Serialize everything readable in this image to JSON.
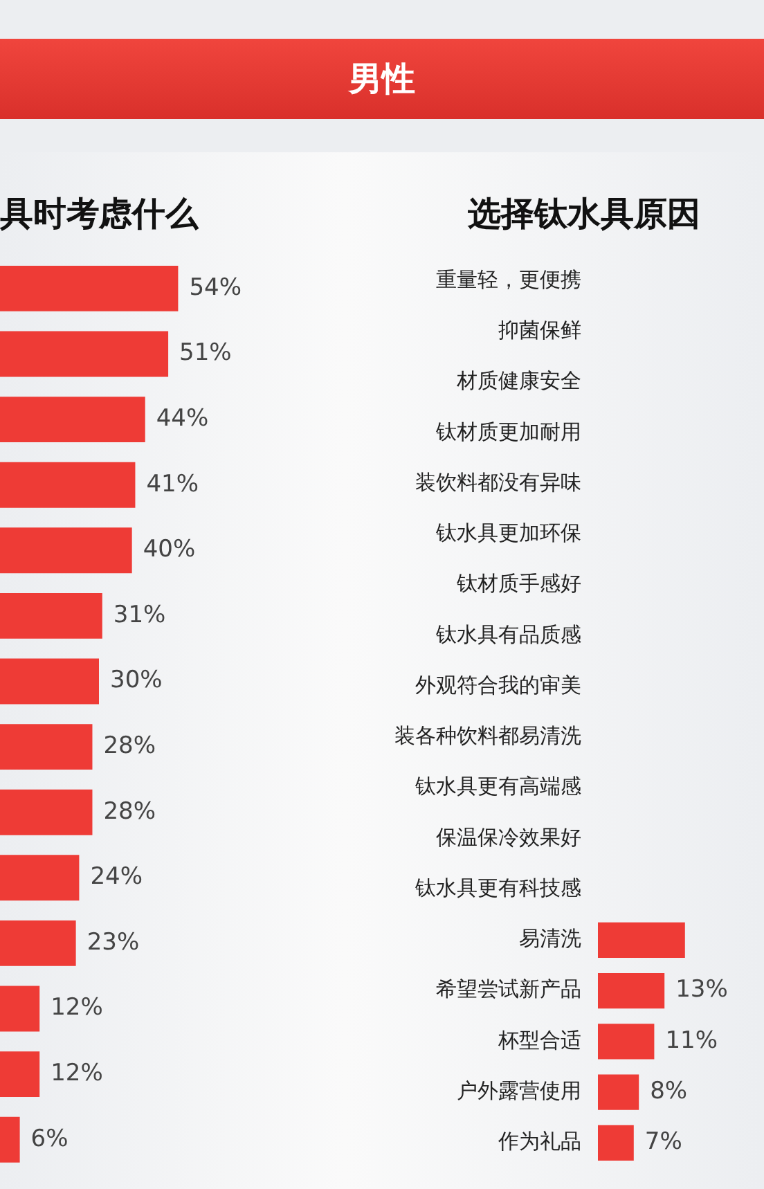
{
  "chart_data": [
    {
      "type": "other",
      "title": "男性"
    },
    {
      "type": "bar",
      "orientation": "horizontal",
      "title": "具时考虑什么",
      "categories": [
        null,
        null,
        null,
        null,
        null,
        null,
        null,
        null,
        null,
        null,
        null,
        null,
        null,
        null
      ],
      "values": [
        54,
        51,
        44,
        41,
        40,
        31,
        30,
        28,
        28,
        24,
        23,
        12,
        12,
        6
      ],
      "color": "#ee3b36",
      "value_labels": [
        "54%",
        "51%",
        "44%",
        "41%",
        "40%",
        "31%",
        "30%",
        "28%",
        "28%",
        "24%",
        "23%",
        "12%",
        "12%",
        "6%"
      ]
    },
    {
      "type": "bar",
      "orientation": "horizontal",
      "title": "选择钛水具原因",
      "categories": [
        "重量轻，更便携",
        "抑菌保鲜",
        "材质健康安全",
        "钛材质更加耐用",
        "装饮料都没有异味",
        "钛水具更加环保",
        "钛材质手感好",
        "钛水具有品质感",
        "外观符合我的审美",
        "装各种饮料都易清洗",
        "钛水具更有高端感",
        "保温保冷效果好",
        "钛水具更有科技感",
        "易清洗",
        "希望尝试新产品",
        "杯型合适",
        "户外露营使用",
        "作为礼品"
      ],
      "values": [
        null,
        null,
        null,
        null,
        null,
        null,
        null,
        null,
        null,
        null,
        null,
        null,
        null,
        17,
        13,
        11,
        8,
        7
      ],
      "color": "#ee3b36",
      "value_labels": [
        null,
        null,
        null,
        null,
        null,
        null,
        null,
        null,
        null,
        null,
        null,
        null,
        null,
        null,
        "13%",
        "11%",
        "8%",
        "7%"
      ]
    }
  ]
}
